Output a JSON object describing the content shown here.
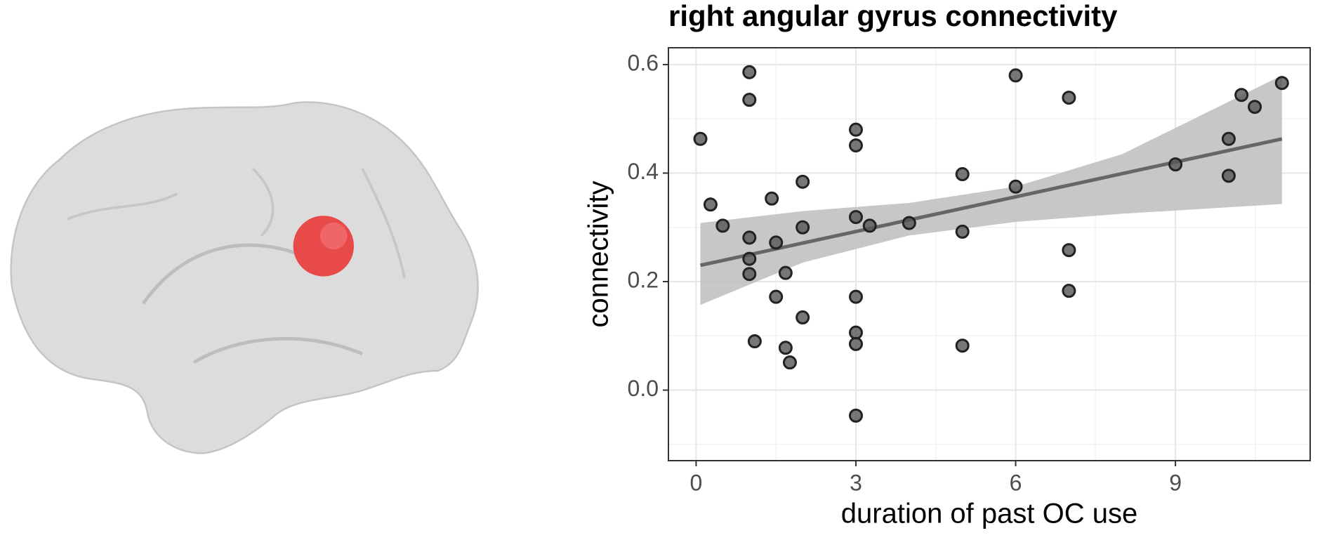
{
  "chart_data": {
    "type": "scatter",
    "title": "right angular gyrus connectivity",
    "xlabel": "duration of past OC use",
    "ylabel": "connectivity",
    "xlim": [
      -0.52,
      11.53
    ],
    "ylim": [
      -0.13,
      0.631
    ],
    "xticks": [
      0,
      3,
      6,
      9
    ],
    "yticks": [
      {
        "value": 0,
        "label": "0.0"
      },
      0.2,
      0.4,
      0.6
    ],
    "grid": true,
    "series": [
      {
        "color": "#555555",
        "x": [
          0.08,
          0.27,
          0.5,
          1,
          1,
          1,
          1,
          1,
          1.1,
          1.42,
          1.5,
          1.5,
          1.68,
          1.68,
          1.76,
          2,
          2,
          2,
          3,
          3,
          3,
          3,
          3,
          3,
          3,
          3.26,
          4,
          5,
          5,
          5,
          6,
          6,
          7,
          7,
          7,
          9,
          10,
          10,
          10.24,
          10.49,
          11
        ],
        "y": [
          0.463,
          0.342,
          0.303,
          0.586,
          0.535,
          0.281,
          0.242,
          0.214,
          0.09,
          0.353,
          0.272,
          0.172,
          0.216,
          0.078,
          0.051,
          0.384,
          0.3,
          0.134,
          0.48,
          0.451,
          0.319,
          0.172,
          0.106,
          0.085,
          -0.047,
          0.303,
          0.308,
          0.398,
          0.292,
          0.082,
          0.58,
          0.375,
          0.539,
          0.258,
          0.183,
          0.416,
          0.463,
          0.395,
          0.544,
          0.522,
          0.566
        ]
      }
    ],
    "fit": {
      "color": "#666666",
      "x": [
        0.08,
        11
      ],
      "y": [
        0.23,
        0.463
      ]
    },
    "band": {
      "color": "#bdbdbd",
      "x": [
        0.08,
        2,
        4,
        6,
        8,
        11
      ],
      "lower": [
        0.157,
        0.235,
        0.285,
        0.31,
        0.325,
        0.343
      ],
      "upper": [
        0.308,
        0.33,
        0.345,
        0.375,
        0.435,
        0.58
      ]
    }
  }
}
